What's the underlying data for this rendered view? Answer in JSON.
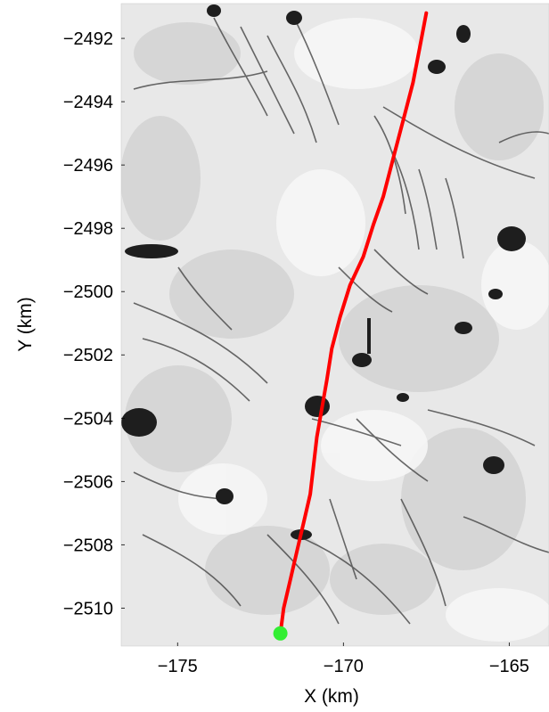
{
  "chart_data": {
    "type": "line",
    "title": "",
    "xlabel": "X (km)",
    "ylabel": "Y (km)",
    "xlim": [
      -176.7,
      -163.8
    ],
    "ylim": [
      -2511.2,
      -2490.9
    ],
    "xticks": [
      -175,
      -170,
      -165
    ],
    "yticks": [
      -2492,
      -2494,
      -2496,
      -2498,
      -2500,
      -2502,
      -2504,
      -2506,
      -2508,
      -2510
    ],
    "xtick_labels": [
      "−175",
      "−170",
      "−165"
    ],
    "ytick_labels": [
      "−2492",
      "−2494",
      "−2496",
      "−2498",
      "−2500",
      "−2502",
      "−2504",
      "−2506",
      "−2508",
      "−2510"
    ],
    "grid": false,
    "legend": "none",
    "background": "grayscale ice surface image",
    "series": [
      {
        "color": "#ff0000",
        "x": [
          -167.5,
          -167.7,
          -167.9,
          -168.2,
          -168.5,
          -168.8,
          -169.1,
          -169.4,
          -169.8,
          -170.1,
          -170.35,
          -170.5,
          -170.65,
          -170.8,
          -170.9,
          -171.0,
          -171.2,
          -171.4,
          -171.6,
          -171.8,
          -171.9
        ],
        "y": [
          -2491.2,
          -2492.3,
          -2493.4,
          -2494.6,
          -2495.8,
          -2497.0,
          -2497.9,
          -2498.9,
          -2499.8,
          -2500.8,
          -2501.8,
          -2502.8,
          -2503.7,
          -2504.6,
          -2505.5,
          -2506.4,
          -2507.3,
          -2508.2,
          -2509.1,
          -2510.0,
          -2510.8
        ]
      }
    ],
    "start_point": {
      "x": -171.9,
      "y": -2510.8,
      "color": "#33ee33"
    }
  }
}
